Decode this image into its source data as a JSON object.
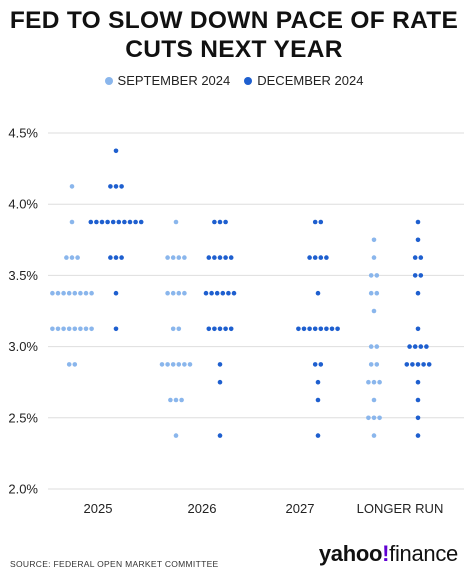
{
  "title_line1": "FED TO SLOW DOWN PACE OF RATE",
  "title_line2": "CUTS NEXT YEAR",
  "source": "SOURCE: FEDERAL OPEN MARKET COMMITTEE",
  "logo": {
    "yahoo": "yahoo",
    "bang": "!",
    "finance": "finance"
  },
  "colors": {
    "september": "#8ab6ec",
    "december": "#1e5fcf",
    "grid": "#dedede"
  },
  "chart_data": {
    "type": "scatter",
    "title": "FED TO SLOW DOWN PACE OF RATE CUTS NEXT YEAR",
    "categories": [
      "2025",
      "2026",
      "2027",
      "LONGER RUN"
    ],
    "ylim": [
      2.0,
      4.5
    ],
    "yticks": [
      "2.0%",
      "2.5%",
      "3.0%",
      "3.5%",
      "4.0%",
      "4.5%"
    ],
    "grid": true,
    "legend_position": "top",
    "series": [
      {
        "name": "SEPTEMBER 2024",
        "color": "#8ab6ec",
        "points": {
          "2025": [
            [
              4.125,
              1
            ],
            [
              3.875,
              1
            ],
            [
              3.625,
              3
            ],
            [
              3.375,
              8
            ],
            [
              3.125,
              8
            ],
            [
              2.875,
              2
            ]
          ],
          "2026": [
            [
              3.875,
              1
            ],
            [
              3.625,
              4
            ],
            [
              3.375,
              4
            ],
            [
              3.125,
              2
            ],
            [
              2.875,
              6
            ],
            [
              2.625,
              3
            ],
            [
              2.375,
              1
            ]
          ],
          "2027": [],
          "LONGER RUN": [
            [
              3.75,
              1
            ],
            [
              3.625,
              1
            ],
            [
              3.5,
              2
            ],
            [
              3.375,
              2
            ],
            [
              3.25,
              1
            ],
            [
              3.0,
              2
            ],
            [
              2.875,
              2
            ],
            [
              2.75,
              3
            ],
            [
              2.625,
              1
            ],
            [
              2.5,
              3
            ],
            [
              2.375,
              1
            ]
          ]
        }
      },
      {
        "name": "DECEMBER 2024",
        "color": "#1e5fcf",
        "points": {
          "2025": [
            [
              4.375,
              1
            ],
            [
              4.125,
              3
            ],
            [
              3.875,
              10
            ],
            [
              3.625,
              3
            ],
            [
              3.375,
              1
            ],
            [
              3.125,
              1
            ]
          ],
          "2026": [
            [
              3.875,
              3
            ],
            [
              3.625,
              5
            ],
            [
              3.375,
              6
            ],
            [
              3.125,
              5
            ],
            [
              2.875,
              1
            ],
            [
              2.75,
              1
            ],
            [
              2.375,
              1
            ]
          ],
          "2027": [
            [
              3.875,
              2
            ],
            [
              3.625,
              4
            ],
            [
              3.375,
              1
            ],
            [
              3.125,
              8
            ],
            [
              2.875,
              2
            ],
            [
              2.75,
              1
            ],
            [
              2.625,
              1
            ],
            [
              2.375,
              1
            ]
          ],
          "LONGER RUN": [
            [
              3.875,
              1
            ],
            [
              3.75,
              1
            ],
            [
              3.625,
              2
            ],
            [
              3.5,
              2
            ],
            [
              3.375,
              1
            ],
            [
              3.125,
              1
            ],
            [
              3.0,
              4
            ],
            [
              2.875,
              5
            ],
            [
              2.75,
              1
            ],
            [
              2.625,
              1
            ],
            [
              2.5,
              1
            ],
            [
              2.375,
              1
            ]
          ]
        }
      }
    ]
  }
}
